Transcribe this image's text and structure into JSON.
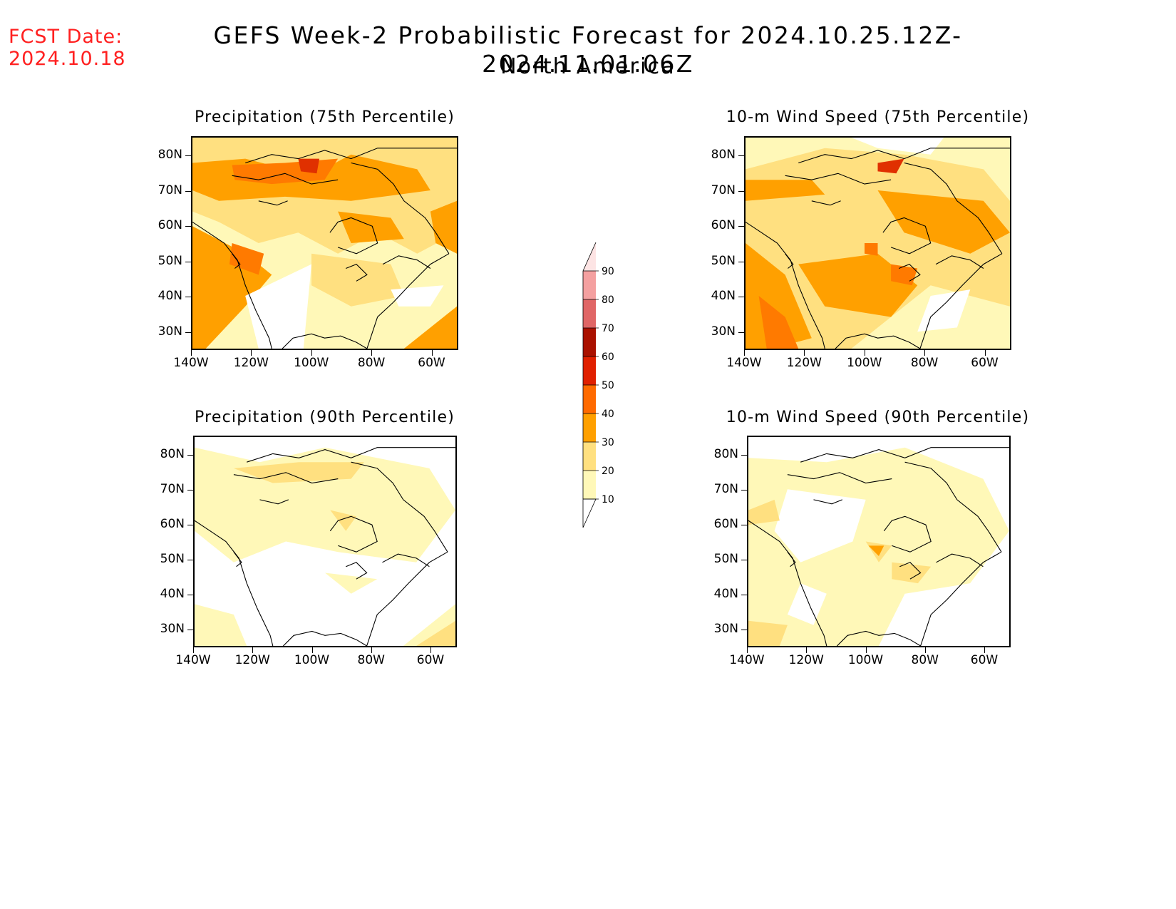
{
  "header": {
    "fcst_label": "FCST Date:",
    "fcst_date": "2024.10.18",
    "title": "GEFS Week-2 Probabilistic Forecast for 2024.10.25.12Z-2024.11.01.06Z",
    "subtitle": "North America"
  },
  "axes": {
    "lat_labels": [
      "80N",
      "70N",
      "60N",
      "50N",
      "40N",
      "30N"
    ],
    "lon_labels": [
      "140W",
      "120W",
      "100W",
      "80W",
      "60W"
    ]
  },
  "panels": [
    {
      "id": "precip75",
      "title": "Precipitation (75th Percentile)"
    },
    {
      "id": "wind75",
      "title": "10-m Wind Speed (75th Percentile)"
    },
    {
      "id": "precip90",
      "title": "Precipitation (90th Percentile)"
    },
    {
      "id": "wind90",
      "title": "10-m Wind Speed (90th Percentile)"
    }
  ],
  "colorbar": {
    "levels": [
      "90",
      "80",
      "70",
      "60",
      "50",
      "40",
      "30",
      "20",
      "10"
    ],
    "colors": [
      "#fde4e4",
      "#f4a0a0",
      "#e06666",
      "#aa1100",
      "#e02000",
      "#ff6a00",
      "#ffa000",
      "#ffe080",
      "#fff8b8"
    ]
  },
  "map_colors": {
    "c10": "#fff8b8",
    "c20": "#ffe080",
    "c30": "#ffa000",
    "c40": "#ff7a00",
    "c50": "#e03000",
    "coast": "#000000"
  }
}
